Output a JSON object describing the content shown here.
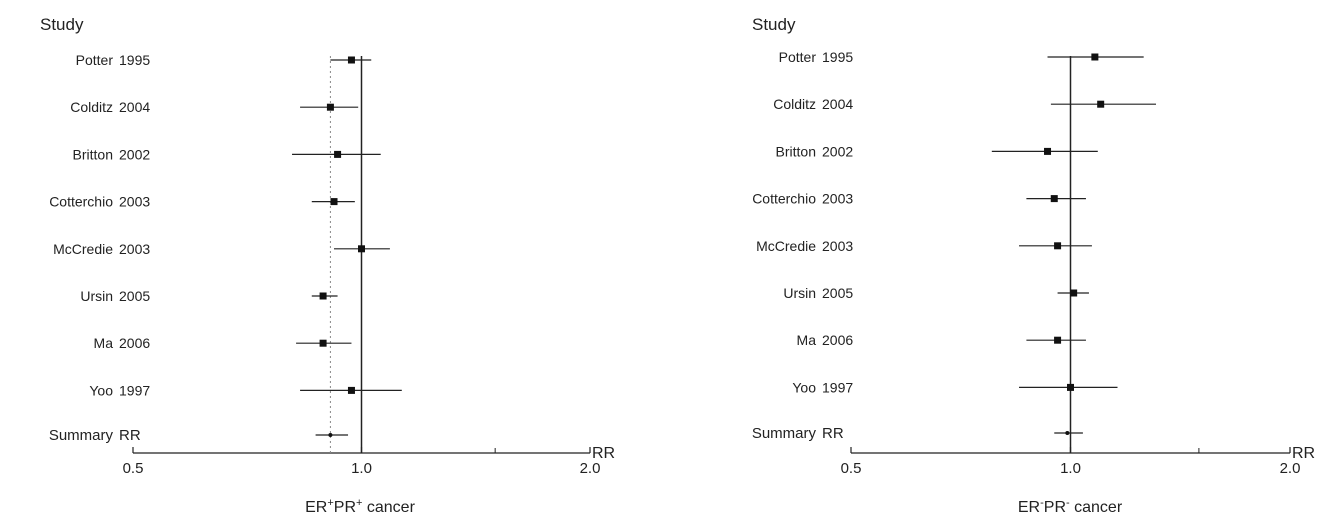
{
  "chart_data": [
    {
      "type": "forest",
      "header": "Study",
      "title_main": "ER",
      "title_sup1": "+",
      "title_mid": "PR",
      "title_sup2": "+",
      "title_rest": " cancer",
      "axis_unit": "RR",
      "scale": "log",
      "xlim": [
        0.5,
        2.0
      ],
      "ticks": [
        "0.5",
        "1.0",
        "2.0"
      ],
      "tick_values": [
        0.5,
        1.0,
        2.0
      ],
      "minor_ticks": [
        1.5
      ],
      "reference_line": 1.0,
      "summary_dashed_line": true,
      "studies": [
        {
          "name": "Potter",
          "year": "1995",
          "rr": 0.97,
          "lo": 0.91,
          "hi": 1.03
        },
        {
          "name": "Colditz",
          "year": "2004",
          "rr": 0.91,
          "lo": 0.83,
          "hi": 0.99
        },
        {
          "name": "Britton",
          "year": "2002",
          "rr": 0.93,
          "lo": 0.81,
          "hi": 1.06
        },
        {
          "name": "Cotterchio",
          "year": "2003",
          "rr": 0.92,
          "lo": 0.86,
          "hi": 0.98
        },
        {
          "name": "McCredie",
          "year": "2003",
          "rr": 1.0,
          "lo": 0.92,
          "hi": 1.09
        },
        {
          "name": "Ursin",
          "year": "2005",
          "rr": 0.89,
          "lo": 0.86,
          "hi": 0.93
        },
        {
          "name": "Ma",
          "year": "2006",
          "rr": 0.89,
          "lo": 0.82,
          "hi": 0.97
        },
        {
          "name": "Yoo",
          "year": "1997",
          "rr": 0.97,
          "lo": 0.83,
          "hi": 1.13
        }
      ],
      "summary": {
        "name": "Summary",
        "label": "RR",
        "rr": 0.91,
        "lo": 0.87,
        "hi": 0.96
      }
    },
    {
      "type": "forest",
      "header": "Study",
      "title_main": "ER",
      "title_sup1": "-",
      "title_mid": "PR",
      "title_sup2": "-",
      "title_rest": " cancer",
      "axis_unit": "RR",
      "scale": "log",
      "xlim": [
        0.5,
        2.0
      ],
      "ticks": [
        "0.5",
        "1.0",
        "2.0"
      ],
      "tick_values": [
        0.5,
        1.0,
        2.0
      ],
      "minor_ticks": [
        1.5
      ],
      "reference_line": 1.0,
      "summary_dashed_line": false,
      "studies": [
        {
          "name": "Potter",
          "year": "1995",
          "rr": 1.08,
          "lo": 0.93,
          "hi": 1.26
        },
        {
          "name": "Colditz",
          "year": "2004",
          "rr": 1.1,
          "lo": 0.94,
          "hi": 1.31
        },
        {
          "name": "Britton",
          "year": "2002",
          "rr": 0.93,
          "lo": 0.78,
          "hi": 1.09
        },
        {
          "name": "Cotterchio",
          "year": "2003",
          "rr": 0.95,
          "lo": 0.87,
          "hi": 1.05
        },
        {
          "name": "McCredie",
          "year": "2003",
          "rr": 0.96,
          "lo": 0.85,
          "hi": 1.07
        },
        {
          "name": "Ursin",
          "year": "2005",
          "rr": 1.01,
          "lo": 0.96,
          "hi": 1.06
        },
        {
          "name": "Ma",
          "year": "2006",
          "rr": 0.96,
          "lo": 0.87,
          "hi": 1.05
        },
        {
          "name": "Yoo",
          "year": "1997",
          "rr": 1.0,
          "lo": 0.85,
          "hi": 1.16
        }
      ],
      "summary": {
        "name": "Summary",
        "label": "RR",
        "rr": 0.99,
        "lo": 0.95,
        "hi": 1.04
      }
    }
  ]
}
